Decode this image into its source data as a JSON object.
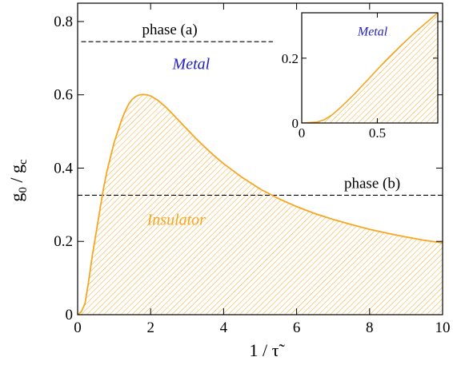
{
  "chart_data": [
    {
      "type": "area",
      "xlabel": "1 / τ̃",
      "ylabel_main": "g",
      "ylabel_sub0": "0",
      "ylabel_sep": " / g",
      "ylabel_subc": "c",
      "xlim": [
        0,
        10
      ],
      "ylim": [
        0,
        0.85
      ],
      "x_ticks": [
        0,
        2,
        4,
        6,
        8,
        10
      ],
      "x_tick_labels": [
        "0",
        "2",
        "4",
        "6",
        "8",
        "10"
      ],
      "y_ticks": [
        0,
        0.2,
        0.4,
        0.6,
        0.8
      ],
      "y_tick_labels": [
        "0",
        "0.2",
        "0.4",
        "0.6",
        "0.8"
      ],
      "grid": false,
      "color": "#f5a623",
      "curve_points": [
        [
          0,
          0
        ],
        [
          0.1,
          0.008
        ],
        [
          0.2,
          0.03
        ],
        [
          0.3,
          0.09
        ],
        [
          0.4,
          0.16
        ],
        [
          0.5,
          0.22
        ],
        [
          0.6,
          0.28
        ],
        [
          0.7,
          0.34
        ],
        [
          0.8,
          0.39
        ],
        [
          0.9,
          0.43
        ],
        [
          1.0,
          0.47
        ],
        [
          1.1,
          0.5
        ],
        [
          1.2,
          0.53
        ],
        [
          1.3,
          0.555
        ],
        [
          1.4,
          0.575
        ],
        [
          1.5,
          0.588
        ],
        [
          1.6,
          0.596
        ],
        [
          1.7,
          0.6
        ],
        [
          1.8,
          0.601
        ],
        [
          1.9,
          0.6
        ],
        [
          2.0,
          0.597
        ],
        [
          2.2,
          0.585
        ],
        [
          2.4,
          0.568
        ],
        [
          2.6,
          0.548
        ],
        [
          2.8,
          0.527
        ],
        [
          3.0,
          0.506
        ],
        [
          3.25,
          0.48
        ],
        [
          3.5,
          0.456
        ],
        [
          3.75,
          0.433
        ],
        [
          4.0,
          0.412
        ],
        [
          4.5,
          0.375
        ],
        [
          5.0,
          0.343
        ],
        [
          5.5,
          0.317
        ],
        [
          6.0,
          0.295
        ],
        [
          6.5,
          0.276
        ],
        [
          7.0,
          0.26
        ],
        [
          7.5,
          0.246
        ],
        [
          8.0,
          0.233
        ],
        [
          8.5,
          0.222
        ],
        [
          9.0,
          0.212
        ],
        [
          9.5,
          0.203
        ],
        [
          10.0,
          0.196
        ]
      ],
      "reference_lines": [
        {
          "y": 0.745,
          "x_start": 0.1,
          "x_end": 5.35,
          "label": "phase (a)"
        },
        {
          "y": 0.326,
          "x_start": 0,
          "x_end": 10,
          "label": "phase (b)"
        }
      ],
      "regions": [
        {
          "label": "Metal",
          "x": 2.6,
          "y": 0.67,
          "color": "#2222cc"
        },
        {
          "label": "Insulator",
          "x": 1.9,
          "y": 0.245,
          "color": "#f5a623"
        }
      ]
    },
    {
      "type": "area",
      "xlim": [
        0,
        0.9
      ],
      "ylim": [
        0,
        0.34
      ],
      "x_ticks": [
        0,
        0.5
      ],
      "x_tick_labels": [
        "0",
        "0.5"
      ],
      "y_ticks": [
        0,
        0.2
      ],
      "y_tick_labels": [
        "0",
        "0.2"
      ],
      "color": "#f5a623",
      "curve_points": [
        [
          0,
          0
        ],
        [
          0.1,
          0.003
        ],
        [
          0.15,
          0.01
        ],
        [
          0.2,
          0.025
        ],
        [
          0.25,
          0.045
        ],
        [
          0.3,
          0.067
        ],
        [
          0.35,
          0.09
        ],
        [
          0.4,
          0.115
        ],
        [
          0.45,
          0.14
        ],
        [
          0.5,
          0.165
        ],
        [
          0.55,
          0.19
        ],
        [
          0.6,
          0.213
        ],
        [
          0.65,
          0.236
        ],
        [
          0.7,
          0.258
        ],
        [
          0.75,
          0.28
        ],
        [
          0.8,
          0.3
        ],
        [
          0.85,
          0.32
        ],
        [
          0.9,
          0.34
        ]
      ],
      "regions": [
        {
          "label": "Metal",
          "x": 0.37,
          "y": 0.27,
          "color": "#2222cc"
        }
      ]
    }
  ]
}
